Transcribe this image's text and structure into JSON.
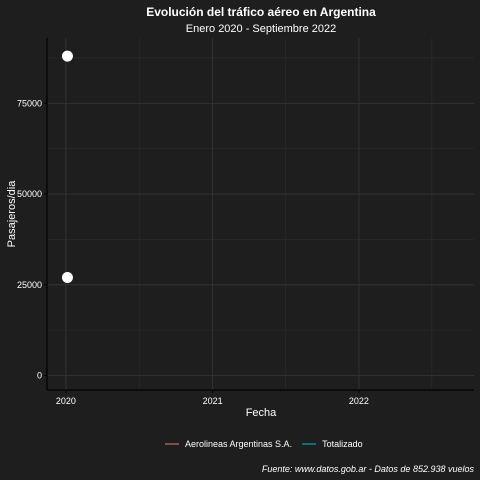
{
  "chart_data": {
    "type": "scatter",
    "title": "Evolución del tráfico aéreo en Argentina",
    "subtitle": "Enero 2020 - Septiembre 2022",
    "xlabel": "Fecha",
    "ylabel": "Pasajeros/dia",
    "caption": "Fuente: www.datos.gob.ar - Datos de 852.938 vuelos",
    "xlim": [
      "2019-11-15",
      "2022-10-15"
    ],
    "ylim": [
      -4000,
      93000
    ],
    "x_ticks": [
      {
        "label": "2020",
        "date": "2020-01-01"
      },
      {
        "label": "2021",
        "date": "2021-01-01"
      },
      {
        "label": "2022",
        "date": "2022-01-01"
      }
    ],
    "y_ticks": [
      0,
      25000,
      50000,
      75000
    ],
    "grid": true,
    "legend_position": "bottom",
    "series": [
      {
        "name": "Aerolineas Argentinas S.A.",
        "color": "#f8766d",
        "points": [
          {
            "x": "2020-01-05",
            "y": 27000
          }
        ]
      },
      {
        "name": "Totalizado",
        "color": "#00bfc4",
        "points": [
          {
            "x": "2020-01-05",
            "y": 88000
          }
        ]
      }
    ],
    "point_color": "#ffffff"
  }
}
